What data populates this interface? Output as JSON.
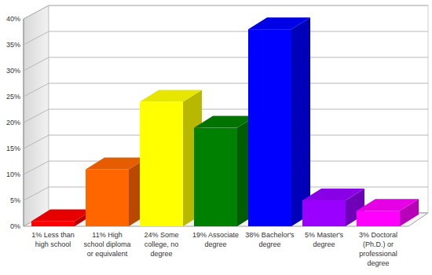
{
  "chart_data": {
    "type": "bar",
    "categories": [
      "1% Less than high school",
      "11% High school diploma or equivalent",
      "24% Some college, no degree",
      "19% Associate degree",
      "38% Bachelor's degree",
      "5% Master's degree",
      "3% Doctoral (Ph.D.) or professional degree"
    ],
    "values": [
      1,
      11,
      24,
      19,
      38,
      5,
      3
    ],
    "colors": [
      "#ff0000",
      "#ff6600",
      "#ffff00",
      "#008000",
      "#0000ff",
      "#9900ff",
      "#ff00ff"
    ],
    "ylim": [
      0,
      40
    ],
    "yticks": [
      {
        "value": 0,
        "label": "0%"
      },
      {
        "value": 5,
        "label": "5%"
      },
      {
        "value": 10,
        "label": "10%"
      },
      {
        "value": 15,
        "label": "15%"
      },
      {
        "value": 20,
        "label": "20%"
      },
      {
        "value": 25,
        "label": "25%"
      },
      {
        "value": 30,
        "label": "30%"
      },
      {
        "value": 35,
        "label": "35%"
      },
      {
        "value": 40,
        "label": "40%"
      }
    ],
    "grid": true
  }
}
